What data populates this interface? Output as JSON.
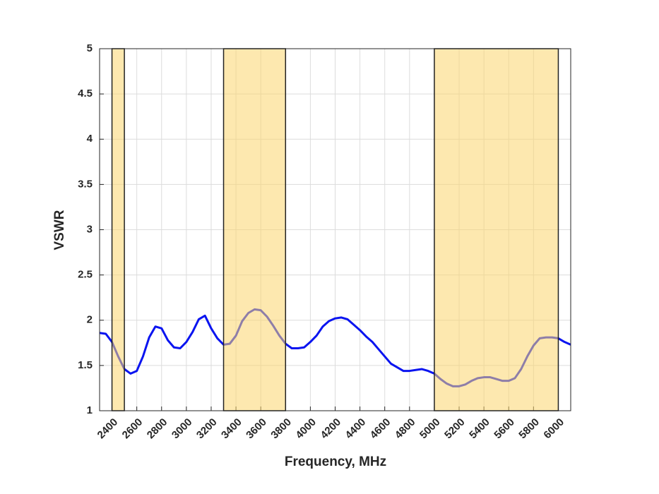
{
  "chart_data": {
    "type": "line",
    "xlabel": "Frequency, MHz",
    "ylabel": "VSWR",
    "xlim": [
      2300,
      6100
    ],
    "ylim": [
      1,
      5
    ],
    "xticks": [
      2400,
      2600,
      2800,
      3000,
      3200,
      3400,
      3600,
      3800,
      4000,
      4200,
      4400,
      4600,
      4800,
      5000,
      5200,
      5400,
      5600,
      5800,
      6000
    ],
    "yticks": [
      1,
      1.5,
      2,
      2.5,
      3,
      3.5,
      4,
      4.5,
      5
    ],
    "grid": true,
    "highlight_bands": [
      [
        2400,
        2500
      ],
      [
        3300,
        3800
      ],
      [
        5000,
        6000
      ]
    ],
    "band_color": "#fbd56e",
    "x": [
      2300,
      2350,
      2400,
      2450,
      2500,
      2550,
      2600,
      2650,
      2700,
      2750,
      2800,
      2850,
      2900,
      2950,
      3000,
      3050,
      3100,
      3150,
      3200,
      3250,
      3300,
      3350,
      3400,
      3450,
      3500,
      3550,
      3600,
      3650,
      3700,
      3750,
      3800,
      3850,
      3900,
      3950,
      4000,
      4050,
      4100,
      4150,
      4200,
      4250,
      4300,
      4350,
      4400,
      4450,
      4500,
      4550,
      4600,
      4650,
      4700,
      4750,
      4800,
      4850,
      4900,
      4950,
      5000,
      5050,
      5100,
      5150,
      5200,
      5250,
      5300,
      5350,
      5400,
      5450,
      5500,
      5550,
      5600,
      5650,
      5700,
      5750,
      5800,
      5850,
      5900,
      5950,
      6000,
      6050,
      6100
    ],
    "series": [
      {
        "color": "#0a14f0",
        "values": [
          1.86,
          1.85,
          1.76,
          1.6,
          1.46,
          1.41,
          1.44,
          1.6,
          1.81,
          1.93,
          1.91,
          1.78,
          1.7,
          1.69,
          1.76,
          1.87,
          2.01,
          2.05,
          1.91,
          1.8,
          1.73,
          1.74,
          1.83,
          1.99,
          2.08,
          2.12,
          2.11,
          2.04,
          1.94,
          1.83,
          1.74,
          1.69,
          1.69,
          1.7,
          1.76,
          1.83,
          1.93,
          1.99,
          2.02,
          2.03,
          2.01,
          1.95,
          1.89,
          1.82,
          1.76,
          1.68,
          1.6,
          1.52,
          1.48,
          1.44,
          1.44,
          1.45,
          1.46,
          1.44,
          1.41,
          1.35,
          1.3,
          1.27,
          1.27,
          1.29,
          1.33,
          1.36,
          1.37,
          1.37,
          1.35,
          1.33,
          1.33,
          1.36,
          1.46,
          1.6,
          1.72,
          1.8,
          1.81,
          1.81,
          1.8,
          1.76,
          1.73
        ]
      }
    ]
  }
}
